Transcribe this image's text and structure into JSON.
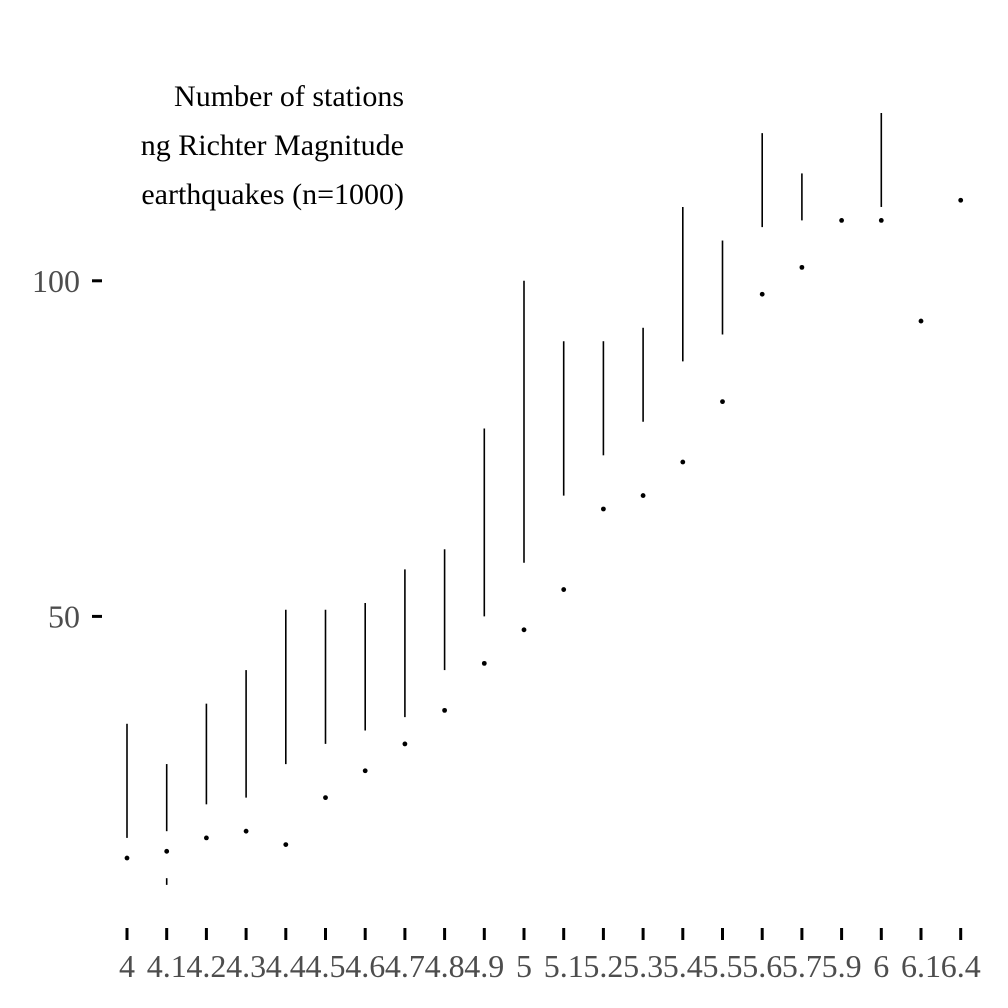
{
  "chart_data": {
    "type": "tufte-boxplot",
    "title_lines": [
      "Number of stations",
      "ng Richter Magnitude",
      "earthquakes (n=1000)"
    ],
    "xlabel": "",
    "ylabel": "",
    "ylim": [
      0,
      118
    ],
    "y_ticks": [
      50,
      100
    ],
    "colors": {
      "ink": "#000000",
      "tick_text": "#4d4d4d"
    },
    "categories": [
      "4",
      "4.1",
      "4.2",
      "4.3",
      "4.4",
      "4.5",
      "4.6",
      "4.7",
      "4.8",
      "4.9",
      "5",
      "5.1",
      "5.2",
      "5.3",
      "5.4",
      "5.5",
      "5.6",
      "5.7",
      "5.9",
      "6",
      "6.1",
      "6.4"
    ],
    "boxes": [
      {
        "cat": "4",
        "lower": 10,
        "q1": 10,
        "median": 14,
        "q3": 17,
        "upper": 34
      },
      {
        "cat": "4.1",
        "lower": 10,
        "q1": 11,
        "median": 15,
        "q3": 18,
        "upper": 28
      },
      {
        "cat": "4.2",
        "lower": 10,
        "q1": 10,
        "median": 17,
        "q3": 22,
        "upper": 37
      },
      {
        "cat": "4.3",
        "lower": 10,
        "q1": 10,
        "median": 18,
        "q3": 23,
        "upper": 42
      },
      {
        "cat": "4.4",
        "lower": 10,
        "q1": 10,
        "median": 16,
        "q3": 28,
        "upper": 51
      },
      {
        "cat": "4.5",
        "lower": 10,
        "q1": 10,
        "median": 23,
        "q3": 31,
        "upper": 51
      },
      {
        "cat": "4.6",
        "lower": 10,
        "q1": 10,
        "median": 27,
        "q3": 33,
        "upper": 52
      },
      {
        "cat": "4.7",
        "lower": 12,
        "q1": 12,
        "median": 31,
        "q3": 35,
        "upper": 57
      },
      {
        "cat": "4.8",
        "lower": 13,
        "q1": 13,
        "median": 36,
        "q3": 42,
        "upper": 60
      },
      {
        "cat": "4.9",
        "lower": 20,
        "q1": 20,
        "median": 43,
        "q3": 50,
        "upper": 78
      },
      {
        "cat": "5",
        "lower": 22,
        "q1": 22,
        "median": 48,
        "q3": 58,
        "upper": 100
      },
      {
        "cat": "5.1",
        "lower": 22,
        "q1": 22,
        "median": 54,
        "q3": 68,
        "upper": 91
      },
      {
        "cat": "5.2",
        "lower": 29,
        "q1": 29,
        "median": 66,
        "q3": 74,
        "upper": 91
      },
      {
        "cat": "5.3",
        "lower": 16,
        "q1": 16,
        "median": 68,
        "q3": 79,
        "upper": 93
      },
      {
        "cat": "5.4",
        "lower": 43,
        "q1": 43,
        "median": 73,
        "q3": 88,
        "upper": 111
      },
      {
        "cat": "5.5",
        "lower": 67,
        "q1": 67,
        "median": 82,
        "q3": 92,
        "upper": 106
      },
      {
        "cat": "5.6",
        "lower": 80,
        "q1": 80,
        "median": 98,
        "q3": 108,
        "upper": 122
      },
      {
        "cat": "5.7",
        "lower": 76,
        "q1": 76,
        "median": 102,
        "q3": 109,
        "upper": 116
      },
      {
        "cat": "5.9",
        "lower": 109,
        "q1": 109,
        "median": 109,
        "q3": 109,
        "upper": 109
      },
      {
        "cat": "6",
        "lower": 84,
        "q1": 84,
        "median": 109,
        "q3": 111,
        "upper": 125
      },
      {
        "cat": "6.1",
        "lower": 94,
        "q1": 94,
        "median": 94,
        "q3": 94,
        "upper": 94
      },
      {
        "cat": "6.4",
        "lower": 112,
        "q1": 112,
        "median": 112,
        "q3": 112,
        "upper": 112
      }
    ]
  }
}
